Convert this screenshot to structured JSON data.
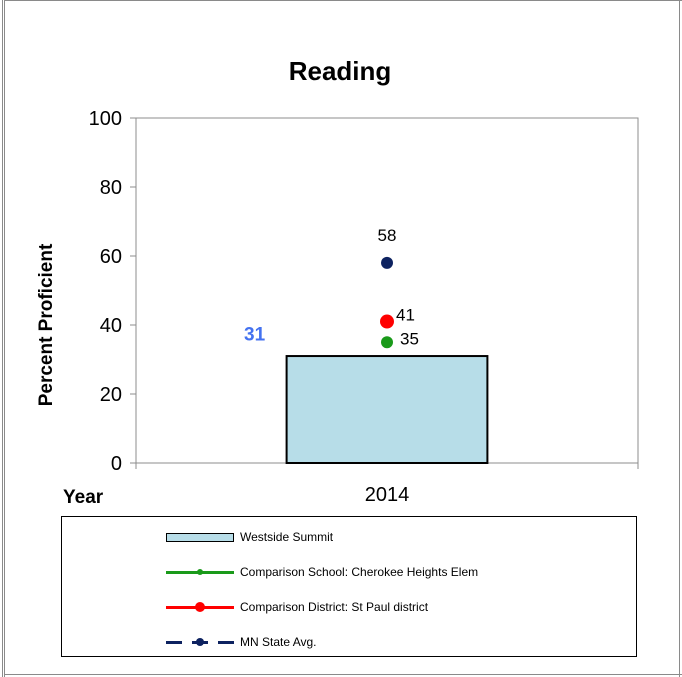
{
  "chart_data": {
    "type": "bar",
    "title": "Reading",
    "ylabel": "Percent Proficient",
    "xlabel": "Year",
    "ylim": [
      0,
      100
    ],
    "yticks": [
      0,
      20,
      40,
      60,
      80,
      100
    ],
    "categories": [
      "2014"
    ],
    "grid": false,
    "legend_position": "bottom",
    "bar_series": {
      "name": "Westside Summit",
      "values": [
        31
      ],
      "color": "#b7dde8",
      "label_color": "#4472f0"
    },
    "point_series": [
      {
        "name": "Comparison School: Cherokee Heights Elem",
        "values": [
          35
        ],
        "color": "#1a9a1a"
      },
      {
        "name": "Comparison District: St Paul district",
        "values": [
          41
        ],
        "color": "#ff0000"
      },
      {
        "name": "MN State Avg.",
        "values": [
          58
        ],
        "color": "#0d2260"
      }
    ]
  }
}
